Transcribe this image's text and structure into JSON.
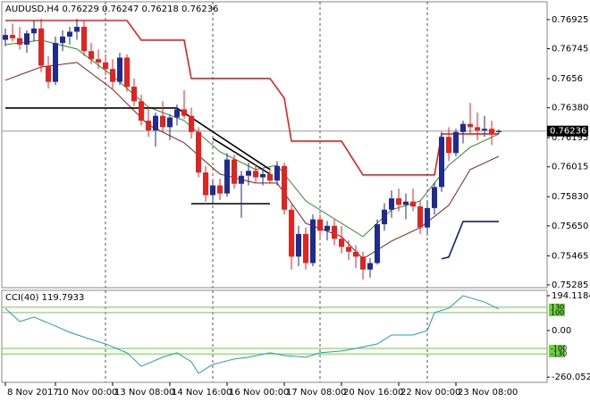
{
  "chart_data": [
    {
      "type": "candlestick",
      "title": "AUDUSD,H4 0.76229 0.76247 0.76218 0.76236",
      "up_color": "#1f2a96",
      "down_color": "#e8201e",
      "categories": [
        "8 Nov 2017",
        null,
        null,
        null,
        null,
        null,
        null,
        "10 Nov 00:00",
        null,
        null,
        null,
        null,
        null,
        null,
        null,
        "13 Nov 08:00",
        null,
        null,
        null,
        null,
        null,
        null,
        null,
        "14 Nov 16:00",
        null,
        null,
        null,
        null,
        null,
        null,
        null,
        "16 Nov 00:00",
        null,
        null,
        null,
        null,
        null,
        null,
        null,
        "17 Nov 08:00",
        null,
        null,
        null,
        null,
        null,
        null,
        null,
        "20 Nov 16:00",
        null,
        null,
        null,
        null,
        null,
        null,
        null,
        "22 Nov 00:00",
        null,
        null,
        null,
        null,
        null,
        null,
        null,
        "23 Nov 08:00",
        null,
        null,
        null,
        null,
        null,
        null
      ],
      "open": [
        0.768,
        0.7683,
        0.7681,
        0.7677,
        0.7684,
        0.7687,
        0.7664,
        0.7654,
        0.7678,
        0.7682,
        0.7685,
        0.7688,
        0.7673,
        0.7668,
        0.7666,
        0.7662,
        0.7654,
        0.7669,
        0.7651,
        0.7642,
        0.763,
        0.7624,
        0.7633,
        0.7626,
        0.7632,
        0.7637,
        0.7633,
        0.7623,
        0.7598,
        0.7584,
        0.759,
        0.7585,
        0.7606,
        0.7591,
        0.7596,
        0.7599,
        0.7595,
        0.7597,
        0.7593,
        0.7602,
        0.7575,
        0.7546,
        0.756,
        0.7542,
        0.7569,
        0.7562,
        0.7565,
        0.7557,
        0.7552,
        0.7549,
        0.7546,
        0.7538,
        0.7542,
        0.7566,
        0.7575,
        0.7582,
        0.7578,
        0.758,
        0.7577,
        0.7564,
        0.7576,
        0.7589,
        0.762,
        0.761,
        0.7623,
        0.7628,
        0.7626,
        0.7624,
        0.7625,
        0.76229
      ],
      "high": [
        0.7687,
        0.769,
        0.7688,
        0.7686,
        0.7692,
        0.7693,
        0.767,
        0.7682,
        0.7686,
        0.7688,
        0.7693,
        0.7692,
        0.7678,
        0.7674,
        0.7671,
        0.7668,
        0.7672,
        0.7671,
        0.7656,
        0.7646,
        0.7638,
        0.7635,
        0.7642,
        0.7634,
        0.764,
        0.7649,
        0.7638,
        0.7626,
        0.7602,
        0.7593,
        0.7594,
        0.761,
        0.7609,
        0.7599,
        0.7604,
        0.7603,
        0.76,
        0.7601,
        0.7605,
        0.7604,
        0.7578,
        0.7565,
        0.7564,
        0.7572,
        0.7572,
        0.7568,
        0.7569,
        0.7565,
        0.7556,
        0.7553,
        0.7549,
        0.7545,
        0.7569,
        0.7579,
        0.7587,
        0.7588,
        0.7585,
        0.7588,
        0.7581,
        0.758,
        0.7592,
        0.7623,
        0.7626,
        0.7625,
        0.763,
        0.7641,
        0.7635,
        0.7633,
        0.763,
        0.76247
      ],
      "low": [
        0.7676,
        0.7679,
        0.7674,
        0.7672,
        0.7679,
        0.766,
        0.765,
        0.7652,
        0.7673,
        0.7677,
        0.768,
        0.767,
        0.7665,
        0.7662,
        0.7658,
        0.765,
        0.7652,
        0.7648,
        0.7639,
        0.7627,
        0.762,
        0.7614,
        0.7623,
        0.7618,
        0.7627,
        0.7631,
        0.7619,
        0.7595,
        0.758,
        0.7579,
        0.7581,
        0.7583,
        0.7588,
        0.757,
        0.759,
        0.7592,
        0.759,
        0.7591,
        0.759,
        0.7572,
        0.7538,
        0.754,
        0.7538,
        0.754,
        0.7558,
        0.7556,
        0.7553,
        0.7548,
        0.7544,
        0.7539,
        0.7532,
        0.7533,
        0.7541,
        0.7562,
        0.757,
        0.7574,
        0.7569,
        0.7574,
        0.756,
        0.7559,
        0.7572,
        0.7586,
        0.7605,
        0.7608,
        0.7616,
        0.7622,
        0.7618,
        0.762,
        0.7615,
        0.76218
      ],
      "close": [
        0.7683,
        0.7681,
        0.7677,
        0.7684,
        0.7687,
        0.7664,
        0.7654,
        0.7678,
        0.7682,
        0.7685,
        0.7688,
        0.7673,
        0.7668,
        0.7666,
        0.7662,
        0.7654,
        0.7669,
        0.7651,
        0.7642,
        0.763,
        0.7624,
        0.7633,
        0.7626,
        0.7632,
        0.7637,
        0.7633,
        0.7623,
        0.7598,
        0.7584,
        0.759,
        0.7585,
        0.7606,
        0.7591,
        0.7596,
        0.7599,
        0.7595,
        0.7597,
        0.7593,
        0.7602,
        0.7575,
        0.7546,
        0.756,
        0.7542,
        0.7569,
        0.7562,
        0.7565,
        0.7557,
        0.7552,
        0.7549,
        0.7546,
        0.7538,
        0.7542,
        0.7566,
        0.7575,
        0.7582,
        0.7578,
        0.758,
        0.7577,
        0.7564,
        0.7576,
        0.7589,
        0.762,
        0.761,
        0.7623,
        0.7628,
        0.7626,
        0.7624,
        0.7625,
        0.7622,
        0.76236
      ],
      "series": [
        {
          "color": "#2e8b2e",
          "x": [
            0,
            5,
            10,
            15,
            20,
            25,
            30,
            35,
            38,
            42,
            47,
            50,
            54,
            58,
            62,
            65,
            69
          ],
          "values": [
            0.7677,
            0.76798,
            0.76743,
            0.76577,
            0.76384,
            0.76301,
            0.76108,
            0.75998,
            0.76025,
            0.75804,
            0.75666,
            0.75584,
            0.75749,
            0.75804,
            0.76025,
            0.76136,
            0.76218
          ]
        },
        {
          "color": "#8b1a1a",
          "x": [
            0,
            5,
            10,
            15,
            20,
            25,
            30,
            35,
            38,
            42,
            47,
            50,
            54,
            58,
            62,
            65,
            69
          ],
          "values": [
            0.7655,
            0.76632,
            0.7666,
            0.76494,
            0.76274,
            0.76163,
            0.7597,
            0.75915,
            0.75915,
            0.75666,
            0.75584,
            0.75446,
            0.75556,
            0.75639,
            0.75777,
            0.75998,
            0.7608
          ]
        },
        {
          "color": "#e8201e",
          "x": [
            0,
            17,
            19,
            25,
            26,
            37,
            39,
            40,
            47,
            50,
            60,
            61,
            69
          ],
          "values": [
            0.76919,
            0.76919,
            0.76798,
            0.76798,
            0.76561,
            0.76561,
            0.76439,
            0.76174,
            0.76174,
            0.75965,
            0.75965,
            0.76218,
            0.76218
          ]
        },
        {
          "color": "#10208c",
          "x": [
            61,
            62,
            64,
            69
          ],
          "values": [
            0.75446,
            0.75457,
            0.75677,
            0.75677
          ]
        },
        {
          "color": "#000000",
          "x": [
            0,
            24
          ],
          "values": [
            0.76378,
            0.76378
          ]
        },
        {
          "color": "#000000",
          "x": [
            24,
            37
          ],
          "values": [
            0.76378,
            0.75998
          ]
        },
        {
          "color": "#000000",
          "x": [
            26,
            37
          ],
          "values": [
            0.75787,
            0.75787
          ]
        },
        {
          "color": "#000000",
          "x": [
            29,
            37
          ],
          "values": [
            0.7619,
            0.7597
          ]
        }
      ],
      "last_price": 0.76236,
      "ylim": [
        0.75268,
        0.77035
      ],
      "yticks": [
        0.76925,
        0.76745,
        0.7656,
        {
          "value": 0.7638,
          "label": "0.76380"
        },
        0.76195,
        0.76015,
        {
          "value": 0.7583,
          "label": "0.75830"
        },
        {
          "value": 0.7565,
          "label": "0.75650"
        },
        0.75465,
        0.75285
      ]
    },
    {
      "type": "line",
      "title": "CCI(40) 119.7933",
      "series": [
        {
          "color": "#1fa0b4",
          "x": [
            0,
            2,
            4,
            7,
            9,
            12,
            14,
            17,
            19,
            22,
            24,
            26,
            27,
            29,
            32,
            34,
            37,
            39,
            42,
            44,
            47,
            49,
            52,
            54,
            57,
            59,
            60,
            62,
            64,
            67,
            69
          ],
          "values": [
            124,
            50,
            75,
            25,
            -10,
            -50,
            -75,
            -124,
            -199,
            -149,
            -124,
            -174,
            -239,
            -189,
            -159,
            -149,
            -124,
            -139,
            -149,
            -124,
            -114,
            -100,
            -75,
            -25,
            -25,
            0,
            100,
            124,
            194,
            159,
            119.7933
          ]
        }
      ],
      "levels": [
        130,
        100,
        -100,
        -130
      ],
      "level_color": "#6fcf3f",
      "ylim": [
        -289,
        219
      ],
      "yticks": [
        194.1184,
        {
          "value": 0,
          "label": "0.00"
        },
        -260.0525
      ]
    }
  ]
}
